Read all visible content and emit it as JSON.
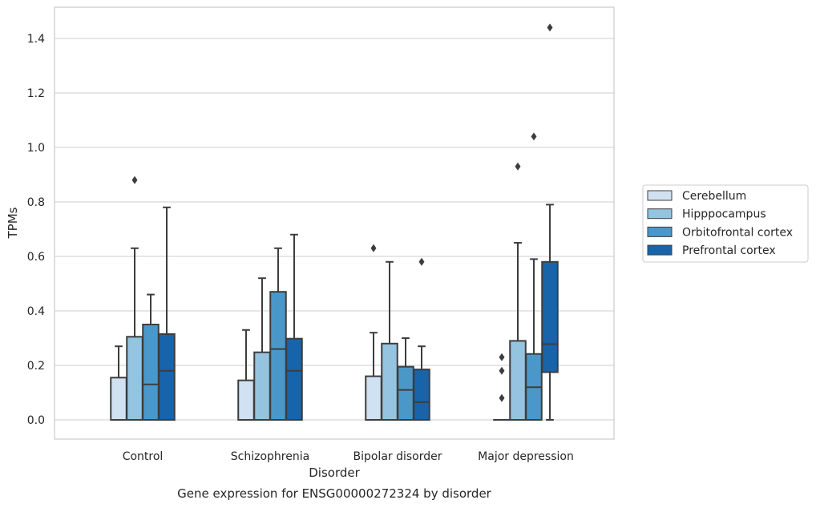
{
  "chart_data": {
    "type": "box",
    "caption": "Gene expression for ENSG00000272324 by disorder",
    "xlabel": "Disorder",
    "ylabel": "TPMs",
    "ylim": [
      -0.07,
      1.52
    ],
    "yticks": [
      "0.0",
      "0.2",
      "0.4",
      "0.6",
      "0.8",
      "1.0",
      "1.2",
      "1.4"
    ],
    "grid": true,
    "legend_position": "right",
    "categories": [
      "Control",
      "Schizophrenia",
      "Bipolar disorder",
      "Major depression"
    ],
    "series": [
      {
        "name": "Cerebellum",
        "color": "#d0e1f2",
        "boxes": [
          {
            "whislo": 0.0,
            "q1": 0.0,
            "med": 0.0,
            "q3": 0.155,
            "whishi": 0.27,
            "fliers": []
          },
          {
            "whislo": 0.0,
            "q1": 0.0,
            "med": 0.0,
            "q3": 0.145,
            "whishi": 0.33,
            "fliers": []
          },
          {
            "whislo": 0.0,
            "q1": 0.0,
            "med": 0.0,
            "q3": 0.16,
            "whishi": 0.32,
            "fliers": [
              0.63
            ]
          },
          {
            "whislo": 0.0,
            "q1": 0.0,
            "med": 0.0,
            "q3": 0.0,
            "whishi": 0.0,
            "fliers": [
              0.08,
              0.18,
              0.23
            ]
          }
        ]
      },
      {
        "name": "Hipppocampus",
        "color": "#94c4df",
        "boxes": [
          {
            "whislo": 0.0,
            "q1": 0.0,
            "med": 0.0,
            "q3": 0.305,
            "whishi": 0.63,
            "fliers": [
              0.88
            ]
          },
          {
            "whislo": 0.0,
            "q1": 0.0,
            "med": 0.0,
            "q3": 0.248,
            "whishi": 0.52,
            "fliers": []
          },
          {
            "whislo": 0.0,
            "q1": 0.0,
            "med": 0.0,
            "q3": 0.28,
            "whishi": 0.58,
            "fliers": []
          },
          {
            "whislo": 0.0,
            "q1": 0.0,
            "med": 0.0,
            "q3": 0.29,
            "whishi": 0.65,
            "fliers": [
              0.93
            ]
          }
        ]
      },
      {
        "name": "Orbitofrontal cortex",
        "color": "#4a98c9",
        "boxes": [
          {
            "whislo": 0.0,
            "q1": 0.0,
            "med": 0.13,
            "q3": 0.35,
            "whishi": 0.46,
            "fliers": []
          },
          {
            "whislo": 0.0,
            "q1": 0.0,
            "med": 0.26,
            "q3": 0.47,
            "whishi": 0.63,
            "fliers": []
          },
          {
            "whislo": 0.0,
            "q1": 0.0,
            "med": 0.11,
            "q3": 0.195,
            "whishi": 0.3,
            "fliers": []
          },
          {
            "whislo": 0.0,
            "q1": 0.0,
            "med": 0.12,
            "q3": 0.242,
            "whishi": 0.59,
            "fliers": [
              1.04
            ]
          }
        ]
      },
      {
        "name": "Prefrontal cortex",
        "color": "#1764ab",
        "boxes": [
          {
            "whislo": 0.0,
            "q1": 0.0,
            "med": 0.18,
            "q3": 0.315,
            "whishi": 0.78,
            "fliers": []
          },
          {
            "whislo": 0.0,
            "q1": 0.0,
            "med": 0.18,
            "q3": 0.298,
            "whishi": 0.68,
            "fliers": []
          },
          {
            "whislo": 0.0,
            "q1": 0.0,
            "med": 0.065,
            "q3": 0.185,
            "whishi": 0.27,
            "fliers": [
              0.58
            ]
          },
          {
            "whislo": 0.0,
            "q1": 0.175,
            "med": 0.278,
            "q3": 0.58,
            "whishi": 0.79,
            "fliers": [
              1.44
            ]
          }
        ]
      }
    ]
  }
}
